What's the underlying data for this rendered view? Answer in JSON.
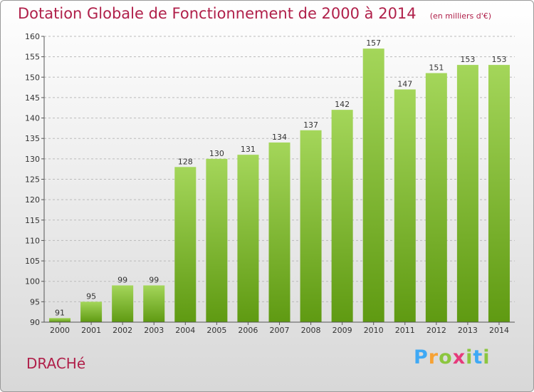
{
  "header": {
    "title": "Dotation Globale de Fonctionnement de 2000 à 2014",
    "unit": "(en milliers d'€)"
  },
  "footer": {
    "commune": "DRACHé",
    "logo": {
      "letters": [
        "P",
        "r",
        "o",
        "x",
        "i",
        "t",
        "i"
      ],
      "colors": [
        "#3fa9f5",
        "#f7a234",
        "#8cc63f",
        "#e63a7b",
        "#8cc63f",
        "#3fa9f5",
        "#8cc63f"
      ]
    }
  },
  "colors": {
    "bar_light": "#a4d65a",
    "bar_dark": "#5f9a12",
    "grid": "#bbbbbb",
    "axis": "#555555"
  },
  "chart_data": {
    "type": "bar",
    "title": "Dotation Globale de Fonctionnement de 2000 à 2014",
    "categories": [
      "2000",
      "2001",
      "2002",
      "2003",
      "2004",
      "2005",
      "2006",
      "2007",
      "2008",
      "2009",
      "2010",
      "2011",
      "2012",
      "2013",
      "2014"
    ],
    "values": [
      91,
      95,
      99,
      99,
      128,
      130,
      131,
      134,
      137,
      142,
      157,
      147,
      151,
      153,
      153
    ],
    "xlabel": "",
    "ylabel": "",
    "ylim": [
      90,
      160
    ],
    "yticks": [
      90,
      95,
      100,
      105,
      110,
      115,
      120,
      125,
      130,
      135,
      140,
      145,
      150,
      155,
      160
    ],
    "grid": true,
    "legend": "none"
  }
}
